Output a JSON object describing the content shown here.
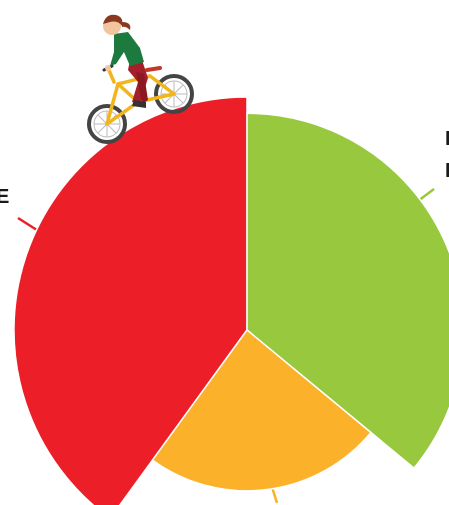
{
  "chart_data": {
    "type": "pie",
    "variant": "polar-area",
    "title": "",
    "slices": [
      {
        "value": 40,
        "radius_ratio": 1.0,
        "color": "#ec1f28"
      },
      {
        "value": 36,
        "radius_ratio": 0.93,
        "color": "#97c83e"
      },
      {
        "value": 24,
        "radius_ratio": 0.69,
        "color": "#fbb12a"
      }
    ],
    "legend": "none"
  },
  "edge_text": {
    "left": "E",
    "right_top": "I",
    "right_bottom": "I"
  },
  "decoration": {
    "illustration": "girl-on-bicycle-icon"
  }
}
